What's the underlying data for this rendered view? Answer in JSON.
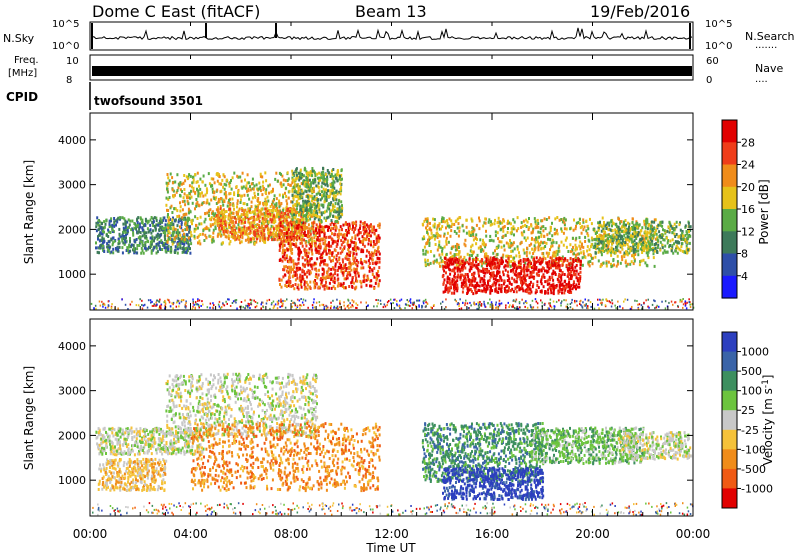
{
  "header": {
    "station": "Dome C East (fitACF)",
    "beam": "Beam 13",
    "date": "19/Feb/2016"
  },
  "panels": {
    "nsky_label": "N.Sky",
    "nsky_tick_top": "10^5",
    "nsky_tick_bottom": "10^0",
    "nsearch_label": "N.Search",
    "nsearch_dots": ".......",
    "freq_label_line1": "Freq.",
    "freq_label_line2": "[MHz]",
    "freq_tick_high": "10",
    "freq_tick_low": "8",
    "nave_label": "Nave",
    "nave_dots": "....",
    "nave_tick_high": "60",
    "nave_tick_low": "0",
    "cpid_label": "CPID",
    "cpid_value": "twofsound 3501"
  },
  "chart_data": [
    {
      "type": "heatmap",
      "name": "power",
      "ylabel": "Slant Range [km]",
      "yticks": [
        "1000",
        "2000",
        "3000",
        "4000"
      ],
      "ylim": [
        200,
        4600
      ],
      "xlim_hours": [
        0,
        24
      ],
      "colorbar_label": "Power [dB]",
      "colorbar_ticks": [
        "4",
        "8",
        "12",
        "16",
        "20",
        "24",
        "28"
      ],
      "colors": [
        "#1a1aff",
        "#2e4fa8",
        "#3d7a5a",
        "#5aab45",
        "#e6c21a",
        "#f08c1a",
        "#ef3d1a",
        "#e10000"
      ],
      "regions": [
        {
          "x": [
            0.2,
            4.0
          ],
          "y": [
            1500,
            2300
          ],
          "level": 2
        },
        {
          "x": [
            3.0,
            9.0
          ],
          "y": [
            1700,
            3300
          ],
          "level": 4
        },
        {
          "x": [
            5.0,
            8.5
          ],
          "y": [
            1800,
            2500
          ],
          "level": 5
        },
        {
          "x": [
            7.5,
            11.5
          ],
          "y": [
            700,
            2200
          ],
          "level": 6
        },
        {
          "x": [
            8.0,
            10.0
          ],
          "y": [
            2200,
            3400
          ],
          "level": 3
        },
        {
          "x": [
            13.2,
            22.5
          ],
          "y": [
            1200,
            2300
          ],
          "level": 4
        },
        {
          "x": [
            14.0,
            19.5
          ],
          "y": [
            600,
            1400
          ],
          "level": 7
        },
        {
          "x": [
            20.0,
            23.9
          ],
          "y": [
            1500,
            2200
          ],
          "level": 3
        }
      ]
    },
    {
      "type": "heatmap",
      "name": "velocity",
      "ylabel": "Slant Range [km]",
      "yticks": [
        "1000",
        "2000",
        "3000",
        "4000"
      ],
      "ylim": [
        200,
        4600
      ],
      "xlim_hours": [
        0,
        24
      ],
      "colorbar_label": "Velocity [m s^-1]",
      "colorbar_ticks": [
        "1000",
        "500",
        "100",
        "25",
        "-25",
        "-100",
        "-500",
        "-1000"
      ],
      "colors": [
        "#2c3fbf",
        "#3a64a8",
        "#3d8f5f",
        "#6cc43e",
        "#c8c8c8",
        "#f5c23a",
        "#f08c1a",
        "#f05a14",
        "#e10000"
      ],
      "regions": [
        {
          "x": [
            0.2,
            4.5
          ],
          "y": [
            1600,
            2200
          ],
          "level": 4
        },
        {
          "x": [
            3.0,
            9.0
          ],
          "y": [
            2000,
            3400
          ],
          "level": 4
        },
        {
          "x": [
            4.0,
            11.5
          ],
          "y": [
            800,
            2300
          ],
          "level": 6
        },
        {
          "x": [
            0.3,
            3.0
          ],
          "y": [
            800,
            1500
          ],
          "level": 5
        },
        {
          "x": [
            13.2,
            18.0
          ],
          "y": [
            1000,
            2300
          ],
          "level": 2
        },
        {
          "x": [
            14.0,
            18.0
          ],
          "y": [
            600,
            1300
          ],
          "level": 0
        },
        {
          "x": [
            17.5,
            22.0
          ],
          "y": [
            1400,
            2200
          ],
          "level": 3
        },
        {
          "x": [
            21.0,
            23.9
          ],
          "y": [
            1500,
            2100
          ],
          "level": 4
        }
      ]
    }
  ],
  "xaxis": {
    "ticks": [
      "00:00",
      "04:00",
      "08:00",
      "12:00",
      "16:00",
      "20:00",
      "00:00"
    ],
    "label": "Time UT"
  }
}
